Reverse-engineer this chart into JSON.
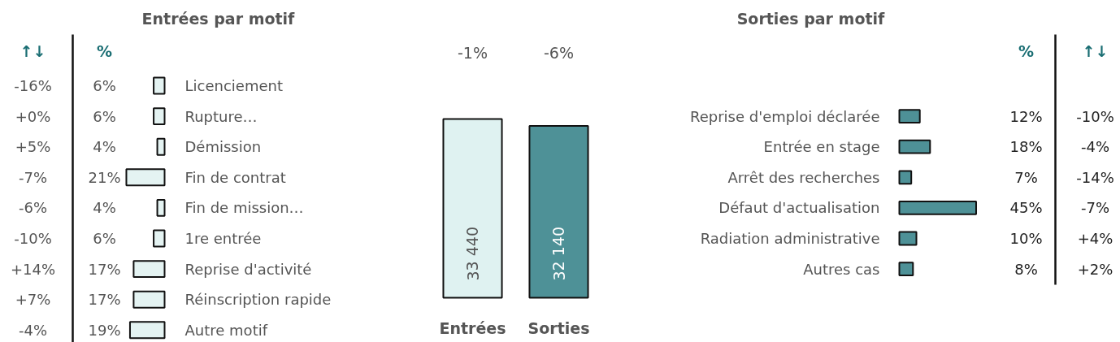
{
  "chart_data": [
    {
      "type": "bar",
      "orientation": "horizontal",
      "title": "Entrées par motif",
      "categories": [
        "Licenciement",
        "Rupture…",
        "Démission",
        "Fin de contrat",
        "Fin de mission…",
        "1re entrée",
        "Reprise d'activité",
        "Réinscription rapide",
        "Autre motif"
      ],
      "values": [
        6,
        6,
        4,
        21,
        4,
        6,
        17,
        17,
        19
      ],
      "value_labels": [
        "6%",
        "6%",
        "4%",
        "21%",
        "4%",
        "6%",
        "17%",
        "17%",
        "19%"
      ],
      "color": "#e4f3f2",
      "annotations": [
        "↑↓",
        "%",
        "-16%",
        "+0%",
        "+5%",
        "-7%",
        "-6%",
        "-10%",
        "+14%",
        "+7%",
        "-4%"
      ]
    },
    {
      "type": "bar",
      "categories": [
        "Entrées",
        "Sorties"
      ],
      "values": [
        33440,
        32140
      ],
      "colors": [
        "#dff2f1",
        "#4e9197"
      ],
      "value_labels": [
        "33 440",
        "32 140"
      ],
      "annotations": [
        "-1%",
        "-6%"
      ]
    },
    {
      "type": "bar",
      "orientation": "horizontal",
      "title": "Sorties par motif",
      "categories": [
        "Reprise d'emploi déclarée",
        "Entrée en stage",
        "Arrêt des recherches",
        "Défaut d'actualisation",
        "Radiation administrative",
        "Autres cas"
      ],
      "values": [
        12,
        18,
        7,
        45,
        10,
        8
      ],
      "value_labels": [
        "12%",
        "18%",
        "7%",
        "45%",
        "10%",
        "8%"
      ],
      "color": "#4e9197",
      "annotations": [
        "%",
        "↑↓",
        "-10%",
        "-4%",
        "-14%",
        "-7%",
        "+4%",
        "+2%"
      ]
    }
  ]
}
